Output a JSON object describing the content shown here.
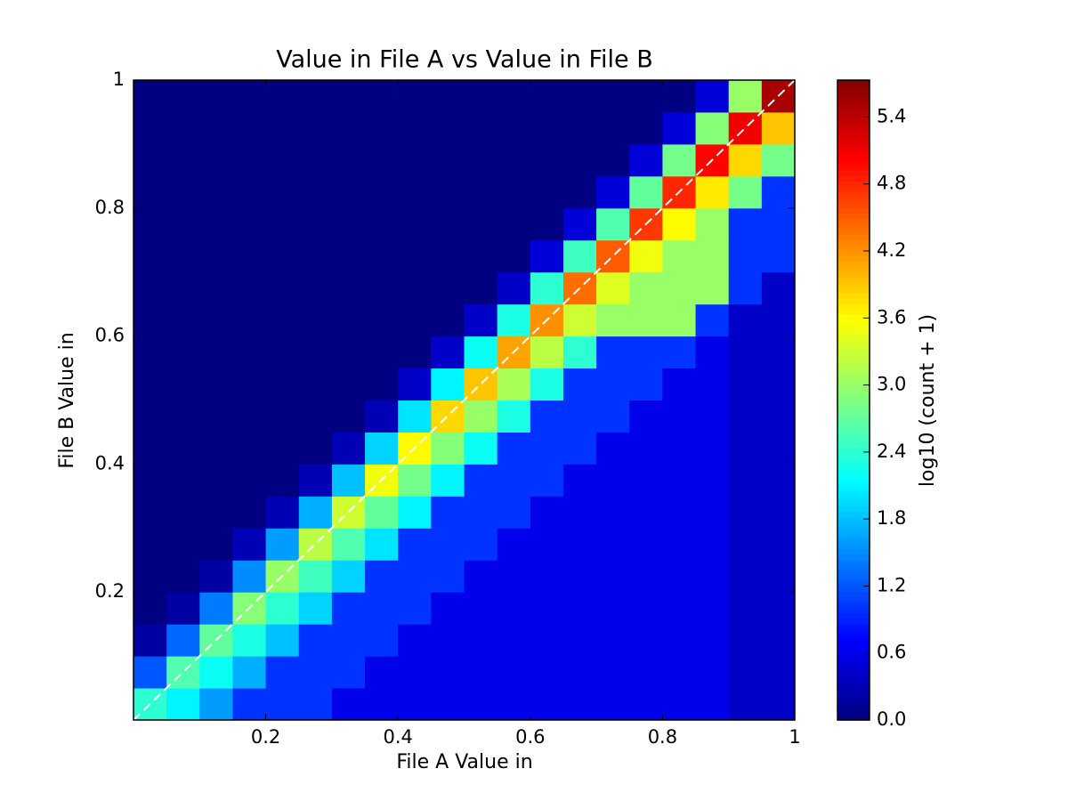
{
  "chart_data": {
    "type": "heatmap",
    "title": "Value in File A vs Value in File B",
    "x_label": "File A Value in",
    "y_label": "File B Value in",
    "xlim": [
      0,
      1
    ],
    "ylim": [
      0,
      1
    ],
    "xticks": [
      0.2,
      0.4,
      0.6,
      0.8,
      1
    ],
    "yticks": [
      0.2,
      0.4,
      0.6,
      0.8,
      1
    ],
    "x": [
      0.025,
      0.075,
      0.125,
      0.175,
      0.225,
      0.275,
      0.325,
      0.375,
      0.425,
      0.475,
      0.525,
      0.575,
      0.625,
      0.675,
      0.725,
      0.775,
      0.825,
      0.875,
      0.925,
      0.975
    ],
    "y": [
      0.025,
      0.075,
      0.125,
      0.175,
      0.225,
      0.275,
      0.325,
      0.375,
      0.425,
      0.475,
      0.525,
      0.575,
      0.625,
      0.675,
      0.725,
      0.775,
      0.825,
      0.875,
      0.925,
      0.975
    ],
    "z": [
      [
        2.4,
        2.1,
        1.6,
        1.0,
        1.0,
        1.0,
        0.6,
        0.6,
        0.6,
        0.6,
        0.6,
        0.6,
        0.6,
        0.6,
        0.6,
        0.6,
        0.6,
        0.6,
        0.4,
        0.4
      ],
      [
        1.2,
        2.6,
        2.2,
        1.7,
        1.0,
        1.0,
        1.0,
        0.6,
        0.6,
        0.6,
        0.6,
        0.6,
        0.6,
        0.6,
        0.6,
        0.6,
        0.6,
        0.6,
        0.4,
        0.4
      ],
      [
        0.2,
        1.3,
        2.7,
        2.3,
        1.8,
        1.0,
        1.0,
        1.0,
        0.6,
        0.6,
        0.6,
        0.6,
        0.6,
        0.6,
        0.6,
        0.6,
        0.6,
        0.6,
        0.4,
        0.4
      ],
      [
        0,
        0.2,
        1.4,
        2.9,
        2.4,
        1.9,
        1.0,
        1.0,
        1.0,
        0.6,
        0.6,
        0.6,
        0.6,
        0.6,
        0.6,
        0.6,
        0.6,
        0.6,
        0.4,
        0.4
      ],
      [
        0,
        0,
        0.2,
        1.5,
        3.0,
        2.5,
        1.9,
        1.0,
        1.0,
        1.0,
        0.6,
        0.6,
        0.6,
        0.6,
        0.6,
        0.6,
        0.6,
        0.6,
        0.4,
        0.4
      ],
      [
        0,
        0,
        0,
        0.3,
        1.6,
        3.2,
        2.6,
        2.0,
        1.0,
        1.0,
        1.0,
        0.6,
        0.6,
        0.6,
        0.6,
        0.6,
        0.6,
        0.6,
        0.4,
        0.4
      ],
      [
        0,
        0,
        0,
        0,
        0.3,
        1.7,
        3.3,
        2.7,
        2.1,
        1.0,
        1.0,
        1.0,
        0.6,
        0.6,
        0.6,
        0.6,
        0.6,
        0.6,
        0.4,
        0.4
      ],
      [
        0,
        0,
        0,
        0,
        0,
        0.3,
        1.8,
        3.5,
        2.8,
        2.1,
        1.0,
        1.0,
        1.0,
        0.6,
        0.6,
        0.6,
        0.6,
        0.6,
        0.4,
        0.4
      ],
      [
        0,
        0,
        0,
        0,
        0,
        0,
        0.3,
        1.9,
        3.6,
        2.9,
        2.2,
        1.0,
        1.0,
        1.0,
        0.6,
        0.6,
        0.6,
        0.6,
        0.4,
        0.4
      ],
      [
        0,
        0,
        0,
        0,
        0,
        0,
        0,
        0.3,
        2.0,
        3.8,
        3.0,
        2.3,
        1.0,
        1.0,
        1.0,
        0.6,
        0.6,
        0.6,
        0.4,
        0.4
      ],
      [
        0,
        0,
        0,
        0,
        0,
        0,
        0,
        0,
        0.4,
        2.1,
        3.9,
        3.1,
        2.3,
        1.0,
        1.0,
        1.0,
        0.6,
        0.6,
        0.4,
        0.4
      ],
      [
        0,
        0,
        0,
        0,
        0,
        0,
        0,
        0,
        0,
        0.4,
        2.2,
        4.1,
        3.2,
        2.4,
        1.0,
        1.0,
        1.0,
        0.6,
        0.4,
        0.4
      ],
      [
        0,
        0,
        0,
        0,
        0,
        0,
        0,
        0,
        0,
        0,
        0.4,
        2.3,
        4.2,
        3.3,
        3.0,
        3.0,
        3.0,
        1.0,
        0.4,
        0.4
      ],
      [
        0,
        0,
        0,
        0,
        0,
        0,
        0,
        0,
        0,
        0,
        0,
        0.4,
        2.4,
        4.4,
        3.4,
        3.0,
        3.0,
        3.0,
        1.0,
        0.4
      ],
      [
        0,
        0,
        0,
        0,
        0,
        0,
        0,
        0,
        0,
        0,
        0,
        0,
        0.5,
        2.5,
        4.5,
        3.5,
        3.0,
        3.0,
        1.0,
        1.0
      ],
      [
        0,
        0,
        0,
        0,
        0,
        0,
        0,
        0,
        0,
        0,
        0,
        0,
        0,
        0.5,
        2.6,
        4.7,
        3.6,
        3.0,
        1.0,
        1.0
      ],
      [
        0,
        0,
        0,
        0,
        0,
        0,
        0,
        0,
        0,
        0,
        0,
        0,
        0,
        0,
        0.5,
        2.7,
        4.8,
        3.7,
        2.8,
        1.0
      ],
      [
        0,
        0,
        0,
        0,
        0,
        0,
        0,
        0,
        0,
        0,
        0,
        0,
        0,
        0,
        0,
        0.5,
        2.8,
        5.0,
        3.8,
        2.8
      ],
      [
        0,
        0,
        0,
        0,
        0,
        0,
        0,
        0,
        0,
        0,
        0,
        0,
        0,
        0,
        0,
        0,
        0.5,
        2.9,
        5.1,
        3.9
      ],
      [
        0,
        0,
        0,
        0,
        0,
        0,
        0,
        0,
        0,
        0,
        0,
        0,
        0,
        0,
        0,
        0,
        0,
        0.5,
        3.0,
        5.5
      ]
    ],
    "colormap": "jet",
    "colorbar": {
      "label": "log10 (count + 1)",
      "lim": [
        0,
        5.73
      ],
      "ticks": [
        {
          "value": 0,
          "label": "0.0"
        },
        0.6,
        1.2,
        1.8,
        2.4,
        {
          "value": 3,
          "label": "3.0"
        },
        3.6,
        4.2,
        4.8,
        5.4
      ]
    }
  }
}
